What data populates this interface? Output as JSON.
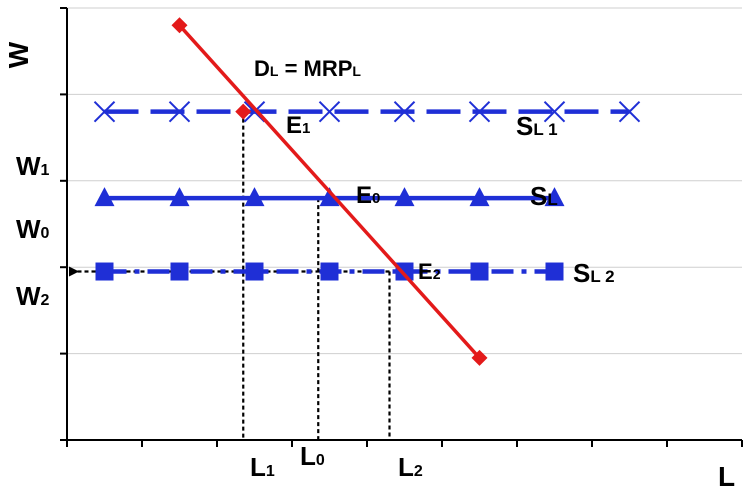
{
  "chart_data": {
    "type": "line",
    "title": "",
    "xlabel": "L",
    "ylabel": "W",
    "xlim": [
      0,
      9
    ],
    "ylim": [
      0,
      5
    ],
    "grid": true,
    "legend": "none",
    "series": [
      {
        "name": "DL = MRPL",
        "color": "#e31a1a",
        "style": "solid",
        "marker": "diamond",
        "points": [
          [
            1.5,
            4.8
          ],
          [
            2.5,
            3.8
          ],
          [
            3.5,
            2.8
          ],
          [
            4.5,
            1.95
          ],
          [
            5.5,
            0.95
          ]
        ]
      },
      {
        "name": "SL 1",
        "color": "#1f2fd6",
        "style": "dashed",
        "marker": "x",
        "x": [
          0.5,
          1.5,
          2.5,
          3.5,
          4.5,
          5.5,
          6.5,
          7.5
        ],
        "y": 3.8
      },
      {
        "name": "SL",
        "color": "#1f2fd6",
        "style": "solid",
        "marker": "triangle",
        "x": [
          0.5,
          1.5,
          2.5,
          3.5,
          4.5,
          5.5,
          6.5
        ],
        "y": 2.8
      },
      {
        "name": "SL 2",
        "color": "#1f2fd6",
        "style": "dash-dot",
        "marker": "square",
        "x": [
          0.5,
          1.5,
          2.5,
          3.5,
          4.5,
          5.5,
          6.5
        ],
        "y": 1.95
      }
    ],
    "equilibria": [
      {
        "label": "E1",
        "x": 2.35,
        "y": 3.8,
        "l_label": "L1",
        "w_label": "W1"
      },
      {
        "label": "E0",
        "x": 3.35,
        "y": 2.8,
        "l_label": "L0",
        "w_label": "W0"
      },
      {
        "label": "E2",
        "x": 4.3,
        "y": 1.95,
        "l_label": "L2",
        "w_label": "W2"
      }
    ],
    "labels": {
      "E1": {
        "main": "E",
        "sub": "1"
      },
      "E0": {
        "main": "E",
        "sub": "0"
      },
      "E2": {
        "main": "E",
        "sub": "2"
      },
      "SL1": {
        "main": "S",
        "sub": "L 1"
      },
      "SL": {
        "main": "S",
        "sub": "L"
      },
      "SL2": {
        "main": "S",
        "sub": "L 2"
      },
      "DL": "D",
      "DL_sub1": "L",
      "DL_eq": " = MRP",
      "DL_sub2": "L",
      "W1": {
        "main": "W",
        "sub": "1"
      },
      "W0": {
        "main": "W",
        "sub": "0"
      },
      "W2": {
        "main": "W",
        "sub": "2"
      },
      "L1": {
        "main": "L",
        "sub": "1"
      },
      "L0": {
        "main": "L",
        "sub": "0"
      },
      "L2": {
        "main": "L",
        "sub": "2"
      }
    }
  }
}
